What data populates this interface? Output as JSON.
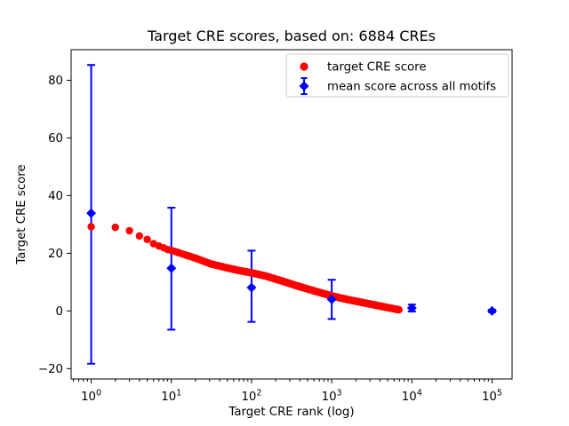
{
  "chart_data": {
    "type": "scatter",
    "title": "Target CRE scores, based on: 6884 CREs",
    "xlabel": "Target CRE rank (log)",
    "ylabel": "Target CRE score",
    "xscale": "log",
    "xlim": [
      0.562,
      177828
    ],
    "ylim": [
      -23.6,
      90.6
    ],
    "xticks": [
      1,
      10,
      100,
      1000,
      10000,
      100000
    ],
    "xtick_exponents": [
      0,
      1,
      2,
      3,
      4,
      5
    ],
    "yticks": [
      -20,
      0,
      20,
      40,
      60,
      80
    ],
    "grid": false,
    "legend_position": "upper right",
    "colors": {
      "target": "#ff0000",
      "mean": "#0000ff",
      "legend_border": "#cccccc",
      "axes": "#000000"
    },
    "legend": {
      "entries": [
        {
          "label": "target CRE score",
          "marker": "circle",
          "color": "#ff0000"
        },
        {
          "label": "mean score across all motifs",
          "marker": "diamond-errorbar",
          "color": "#0000ff"
        }
      ]
    },
    "series": [
      {
        "name": "target CRE score",
        "marker": "circle",
        "color": "#ff0000",
        "n_total": 6884,
        "x": [
          1,
          2,
          3,
          4,
          5,
          6,
          7,
          8,
          9,
          10,
          12,
          15,
          20,
          31,
          50,
          70,
          100,
          150,
          220,
          360,
          560,
          1000,
          1600,
          2750,
          4500,
          6884
        ],
        "y": [
          29.2,
          29.0,
          27.8,
          26.0,
          24.8,
          23.3,
          22.5,
          21.9,
          21.3,
          21.0,
          20.3,
          19.4,
          18.3,
          16.3,
          14.9,
          14.0,
          13.2,
          12.1,
          10.7,
          8.8,
          7.2,
          5.2,
          3.9,
          2.6,
          1.4,
          0.4
        ]
      },
      {
        "name": "mean score across all motifs",
        "marker": "diamond",
        "color": "#0000ff",
        "x": [
          1,
          10,
          100,
          1000,
          10000,
          100000
        ],
        "y": [
          33.9,
          14.8,
          8.1,
          4.0,
          1.0,
          0.0
        ],
        "err_top": [
          85.3,
          35.8,
          20.9,
          10.8,
          2.2,
          0.4
        ],
        "err_bottom": [
          -18.3,
          -6.5,
          -3.8,
          -2.8,
          -0.2,
          -0.4
        ]
      }
    ]
  }
}
